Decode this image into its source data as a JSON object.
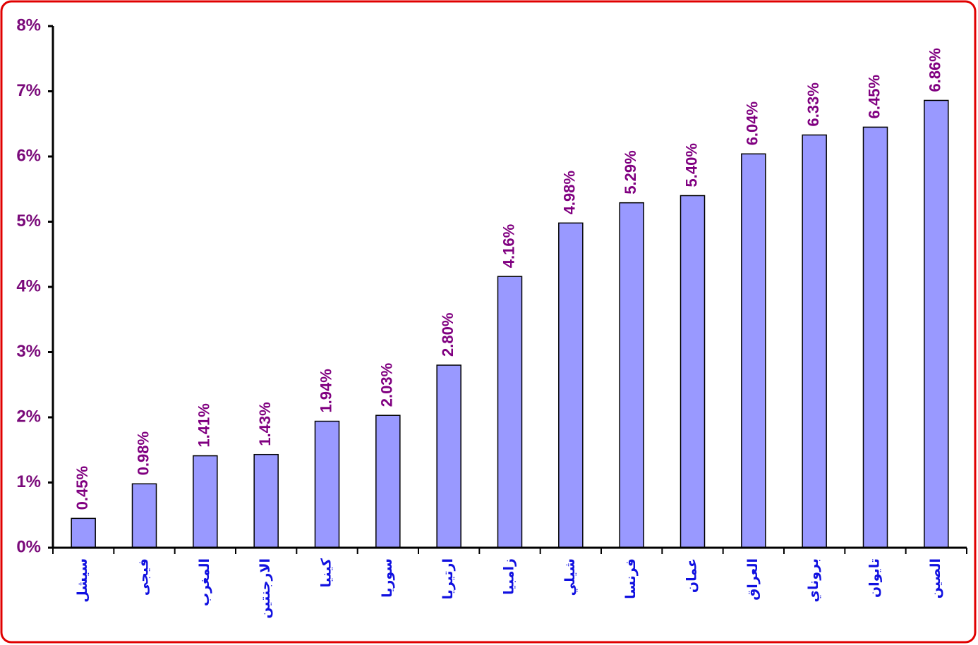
{
  "chart_data": {
    "type": "bar",
    "categories": [
      "سيشل",
      "فيجى",
      "المغرب",
      "الارجنتين",
      "كينيا",
      "سوريا",
      "ارتيريا",
      "زامبيا",
      "شيلي",
      "فرنسا",
      "عمان",
      "العراق",
      "بروناي",
      "تايوان",
      "الصين"
    ],
    "values": [
      0.45,
      0.98,
      1.41,
      1.43,
      1.94,
      2.03,
      2.8,
      4.16,
      4.98,
      5.29,
      5.4,
      6.04,
      6.33,
      6.45,
      6.86
    ],
    "value_labels": [
      "0.45%",
      "0.98%",
      "1.41%",
      "1.43%",
      "1.94%",
      "2.03%",
      "2.80%",
      "4.16%",
      "4.98%",
      "5.29%",
      "5.40%",
      "6.04%",
      "6.33%",
      "6.45%",
      "6.86%"
    ],
    "color": "#9999ff",
    "ylim": [
      0,
      8
    ],
    "yticks": [
      {
        "value": 0,
        "label": "0%"
      },
      {
        "value": 1,
        "label": "1%"
      },
      {
        "value": 2,
        "label": "2%"
      },
      {
        "value": 3,
        "label": "3%"
      },
      {
        "value": 4,
        "label": "4%"
      },
      {
        "value": 5,
        "label": "5%"
      },
      {
        "value": 6,
        "label": "6%"
      },
      {
        "value": 7,
        "label": "7%"
      },
      {
        "value": 8,
        "label": "8%"
      }
    ],
    "grid": false
  }
}
